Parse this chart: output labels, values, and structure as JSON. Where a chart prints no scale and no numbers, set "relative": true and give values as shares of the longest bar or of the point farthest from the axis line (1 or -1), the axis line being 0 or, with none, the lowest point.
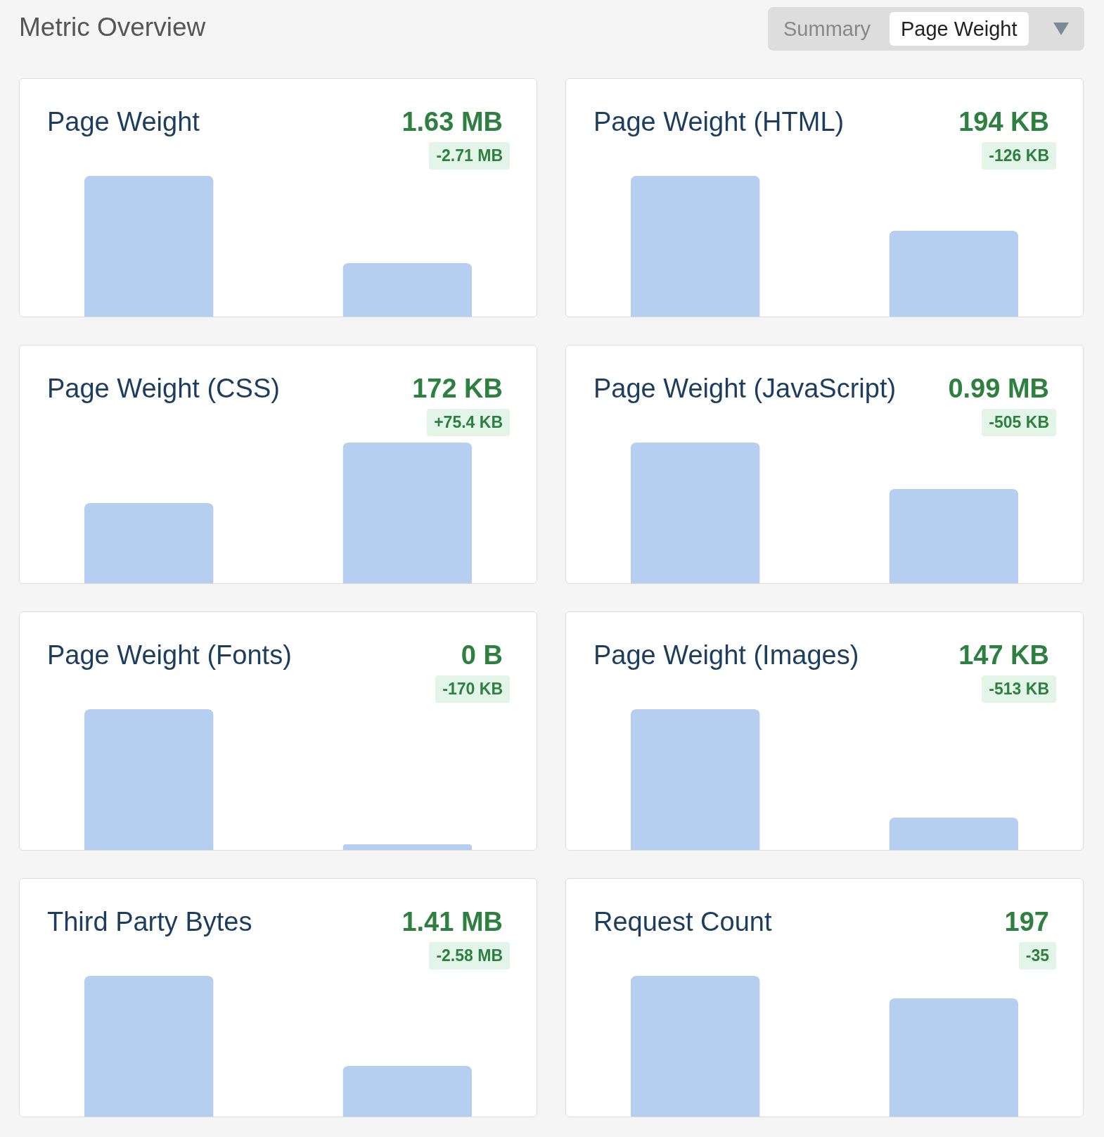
{
  "chart_data": [
    {
      "type": "other",
      "title": "Metric Overview",
      "annotations": [
        "Summary",
        "Page Weight"
      ]
    },
    {
      "type": "bar",
      "title": "Page Weight",
      "annotations": [
        "1.63 MB",
        "-2.71 MB"
      ],
      "relative": true,
      "categories": [
        null,
        null
      ],
      "values": [
        1,
        0.38
      ],
      "color": "#b6cff0"
    },
    {
      "type": "bar",
      "title": "Page Weight (HTML)",
      "annotations": [
        "194 KB",
        "-126 KB"
      ],
      "relative": true,
      "categories": [
        null,
        null
      ],
      "values": [
        1,
        0.61
      ],
      "color": "#b6cff0"
    },
    {
      "type": "bar",
      "title": "Page Weight (CSS)",
      "annotations": [
        "172 KB",
        "+75.4 KB"
      ],
      "relative": true,
      "categories": [
        null,
        null
      ],
      "values": [
        0.57,
        1
      ],
      "color": "#b6cff0"
    },
    {
      "type": "bar",
      "title": "Page Weight (JavaScript)",
      "annotations": [
        "0.99 MB",
        "-505 KB"
      ],
      "relative": true,
      "categories": [
        null,
        null
      ],
      "values": [
        1,
        0.67
      ],
      "color": "#b6cff0"
    },
    {
      "type": "bar",
      "title": "Page Weight (Fonts)",
      "annotations": [
        "0 B",
        "-170 KB"
      ],
      "relative": true,
      "categories": [
        null,
        null
      ],
      "values": [
        1,
        0.04
      ],
      "color": "#b6cff0"
    },
    {
      "type": "bar",
      "title": "Page Weight (Images)",
      "annotations": [
        "147 KB",
        "-513 KB"
      ],
      "relative": true,
      "categories": [
        null,
        null
      ],
      "values": [
        1,
        0.23
      ],
      "color": "#b6cff0"
    },
    {
      "type": "bar",
      "title": "Third Party Bytes",
      "annotations": [
        "1.41 MB",
        "-2.58 MB"
      ],
      "relative": true,
      "categories": [
        null,
        null
      ],
      "values": [
        1,
        0.36
      ],
      "color": "#b6cff0"
    },
    {
      "type": "bar",
      "title": "Request Count",
      "annotations": [
        "197",
        "-35"
      ],
      "relative": true,
      "categories": [
        null,
        null
      ],
      "values": [
        1,
        0.84
      ],
      "color": "#b6cff0"
    }
  ]
}
